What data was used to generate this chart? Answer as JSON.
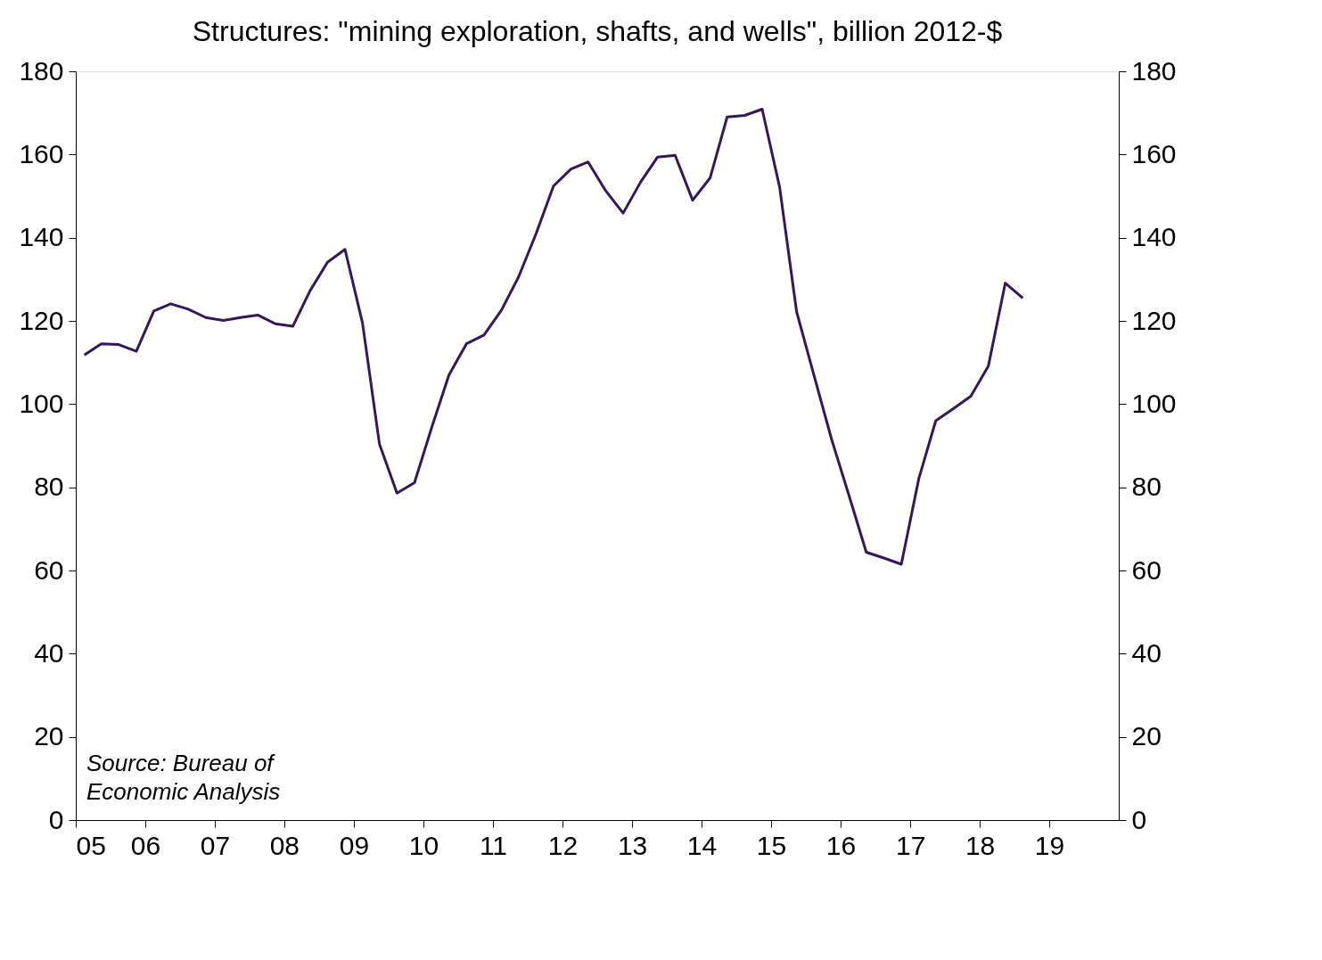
{
  "chart_data": {
    "type": "line",
    "title": "Structures: \"mining exploration, shafts, and wells\", billion 2012-$",
    "x": [
      "2005-02-15",
      "2005-05-15",
      "2005-08-15",
      "2005-11-15",
      "2006-02-15",
      "2006-05-15",
      "2006-08-15",
      "2006-11-15",
      "2007-02-15",
      "2007-05-15",
      "2007-08-15",
      "2007-11-15",
      "2008-02-15",
      "2008-05-15",
      "2008-08-15",
      "2008-11-15",
      "2009-02-15",
      "2009-05-15",
      "2009-08-15",
      "2009-11-15",
      "2010-02-15",
      "2010-05-15",
      "2010-08-15",
      "2010-11-15",
      "2011-02-15",
      "2011-05-15",
      "2011-08-15",
      "2011-11-15",
      "2012-02-15",
      "2012-05-15",
      "2012-08-15",
      "2012-11-15",
      "2013-02-15",
      "2013-05-15",
      "2013-08-15",
      "2013-11-15",
      "2014-02-15",
      "2014-05-15",
      "2014-08-15",
      "2014-11-15",
      "2015-02-15",
      "2015-05-15",
      "2015-08-15",
      "2015-11-15",
      "2016-02-15",
      "2016-05-15",
      "2016-08-15",
      "2016-11-15",
      "2017-02-15",
      "2017-05-15",
      "2017-08-15",
      "2017-11-15",
      "2018-02-15",
      "2018-05-15",
      "2018-08-15"
    ],
    "series": [
      {
        "color": "#33195c",
        "values": [
          111.8,
          114.5,
          114.3,
          112.7,
          122.4,
          124.1,
          122.8,
          120.8,
          120.1,
          120.8,
          121.4,
          119.3,
          118.7,
          127.2,
          134.1,
          137.2,
          119.5,
          90.4,
          78.6,
          81.1,
          94.6,
          107.0,
          114.5,
          116.6,
          122.6,
          130.5,
          140.9,
          152.4,
          156.5,
          158.2,
          151.3,
          145.9,
          153.4,
          159.4,
          159.8,
          149.0,
          154.4,
          169.0,
          169.4,
          170.9,
          152.1,
          122.2,
          106.8,
          91.5,
          77.9,
          64.4,
          63.0,
          61.5,
          82.1,
          96.0,
          98.9,
          101.9,
          109.1,
          129.1,
          125.5
        ]
      }
    ],
    "xlim": [
      "2005-01-01",
      "2020-01-01"
    ],
    "xticks": [
      {
        "value": "2005",
        "label": "05"
      },
      {
        "value": "2006",
        "label": "06"
      },
      {
        "value": "2007",
        "label": "07"
      },
      {
        "value": "2008",
        "label": "08"
      },
      {
        "value": "2009",
        "label": "09"
      },
      {
        "value": "2010",
        "label": "10"
      },
      {
        "value": "2011",
        "label": "11"
      },
      {
        "value": "2012",
        "label": "12"
      },
      {
        "value": "2013",
        "label": "13"
      },
      {
        "value": "2014",
        "label": "14"
      },
      {
        "value": "2015",
        "label": "15"
      },
      {
        "value": "2016",
        "label": "16"
      },
      {
        "value": "2017",
        "label": "17"
      },
      {
        "value": "2018",
        "label": "18"
      },
      {
        "value": "2019",
        "label": "19"
      }
    ],
    "ylim": [
      0,
      180
    ],
    "yticks": [
      0,
      20,
      40,
      60,
      80,
      100,
      120,
      140,
      160,
      180
    ],
    "y2lim": [
      0,
      180
    ],
    "y2ticks": [
      0,
      20,
      40,
      60,
      80,
      100,
      120,
      140,
      160,
      180
    ],
    "grid": false,
    "annotations": [
      "Source: Bureau of\nEconomic Analysis"
    ]
  }
}
